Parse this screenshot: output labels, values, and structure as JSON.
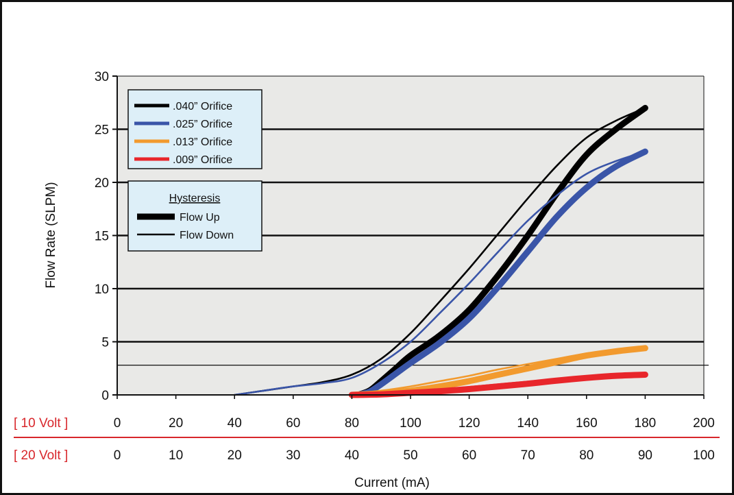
{
  "chart_data": {
    "type": "line",
    "title": "",
    "xlabel": "Current (mA)",
    "ylabel": "Flow Rate (SLPM)",
    "x_ticks": [
      0,
      20,
      40,
      60,
      80,
      100,
      120,
      140,
      160,
      180,
      200
    ],
    "xlim": [
      0,
      200
    ],
    "ylim": [
      0,
      30
    ],
    "y_ticks": [
      0,
      5,
      10,
      15,
      20,
      25,
      30
    ],
    "grid": "horizontal",
    "reference_line_y": 2.8,
    "voltage_scales": [
      {
        "label": "[ 10 Volt ]",
        "ticks": [
          "0",
          "20",
          "40",
          "60",
          "80",
          "100",
          "120",
          "140",
          "160",
          "180",
          "200"
        ]
      },
      {
        "label": "[ 20 Volt ]",
        "ticks": [
          "0",
          "10",
          "20",
          "30",
          "40",
          "50",
          "60",
          "70",
          "80",
          "90",
          "100"
        ]
      }
    ],
    "orifice_legend": {
      "placement": "top-left",
      "entries": [
        {
          "label": ".040” Orifice",
          "color": "#000000"
        },
        {
          "label": ".025” Orifice",
          "color": "#3a55a8"
        },
        {
          "label": ".013” Orifice",
          "color": "#f29a2e"
        },
        {
          "label": ".009” Orifice",
          "color": "#e8262b"
        }
      ]
    },
    "hysteresis_legend": {
      "title": "Hysteresis",
      "entries": [
        {
          "label": "Flow Up",
          "style": "thick"
        },
        {
          "label": "Flow Down",
          "style": "thin"
        }
      ]
    },
    "series": [
      {
        "orifice": ".040”",
        "direction": "up",
        "color": "#000000",
        "x": [
          82,
          86,
          90,
          95,
          100,
          110,
          120,
          130,
          140,
          150,
          160,
          170,
          180
        ],
        "y": [
          0,
          0.4,
          1.3,
          2.5,
          3.7,
          5.6,
          8.0,
          11.3,
          15.0,
          19.0,
          22.6,
          25.0,
          27.0
        ]
      },
      {
        "orifice": ".040”",
        "direction": "down",
        "color": "#000000",
        "x": [
          40,
          50,
          60,
          70,
          80,
          90,
          100,
          110,
          120,
          130,
          140,
          150,
          160,
          170,
          180
        ],
        "y": [
          0,
          0.4,
          0.8,
          1.2,
          1.9,
          3.4,
          5.8,
          8.8,
          11.9,
          15.2,
          18.5,
          21.6,
          24.2,
          25.8,
          27.0
        ]
      },
      {
        "orifice": ".025”",
        "direction": "up",
        "color": "#3a55a8",
        "x": [
          82,
          86,
          90,
          95,
          100,
          110,
          120,
          130,
          140,
          150,
          160,
          170,
          180
        ],
        "y": [
          0,
          0.3,
          1.0,
          2.0,
          3.0,
          4.9,
          7.2,
          10.2,
          13.5,
          16.8,
          19.5,
          21.5,
          22.9
        ]
      },
      {
        "orifice": ".025”",
        "direction": "down",
        "color": "#3a55a8",
        "x": [
          40,
          50,
          60,
          70,
          80,
          90,
          100,
          110,
          120,
          130,
          140,
          150,
          160,
          170,
          180
        ],
        "y": [
          0,
          0.4,
          0.8,
          1.1,
          1.6,
          3.0,
          5.0,
          7.7,
          10.5,
          13.5,
          16.4,
          18.8,
          20.8,
          22.0,
          22.9
        ]
      },
      {
        "orifice": ".013”",
        "direction": "up",
        "color": "#f29a2e",
        "x": [
          80,
          90,
          100,
          110,
          120,
          130,
          140,
          150,
          160,
          170,
          180
        ],
        "y": [
          0,
          0.15,
          0.4,
          0.8,
          1.3,
          1.9,
          2.5,
          3.1,
          3.7,
          4.1,
          4.4
        ]
      },
      {
        "orifice": ".013”",
        "direction": "down",
        "color": "#f29a2e",
        "x": [
          80,
          90,
          100,
          110,
          120,
          130,
          140,
          150,
          160,
          170,
          180
        ],
        "y": [
          0.1,
          0.4,
          0.8,
          1.3,
          1.8,
          2.4,
          2.9,
          3.4,
          3.9,
          4.2,
          4.4
        ]
      },
      {
        "orifice": ".009”",
        "direction": "up",
        "color": "#e8262b",
        "x": [
          80,
          90,
          100,
          110,
          120,
          130,
          140,
          150,
          160,
          170,
          180
        ],
        "y": [
          0,
          0.05,
          0.2,
          0.35,
          0.55,
          0.8,
          1.05,
          1.35,
          1.6,
          1.8,
          1.9
        ]
      },
      {
        "orifice": ".009”",
        "direction": "down",
        "color": "#e8262b",
        "x": [
          80,
          90,
          100,
          110,
          120,
          130,
          140,
          150,
          160,
          170,
          180
        ],
        "y": [
          0.05,
          0.15,
          0.3,
          0.5,
          0.75,
          1.0,
          1.25,
          1.5,
          1.7,
          1.85,
          1.9
        ]
      }
    ]
  }
}
